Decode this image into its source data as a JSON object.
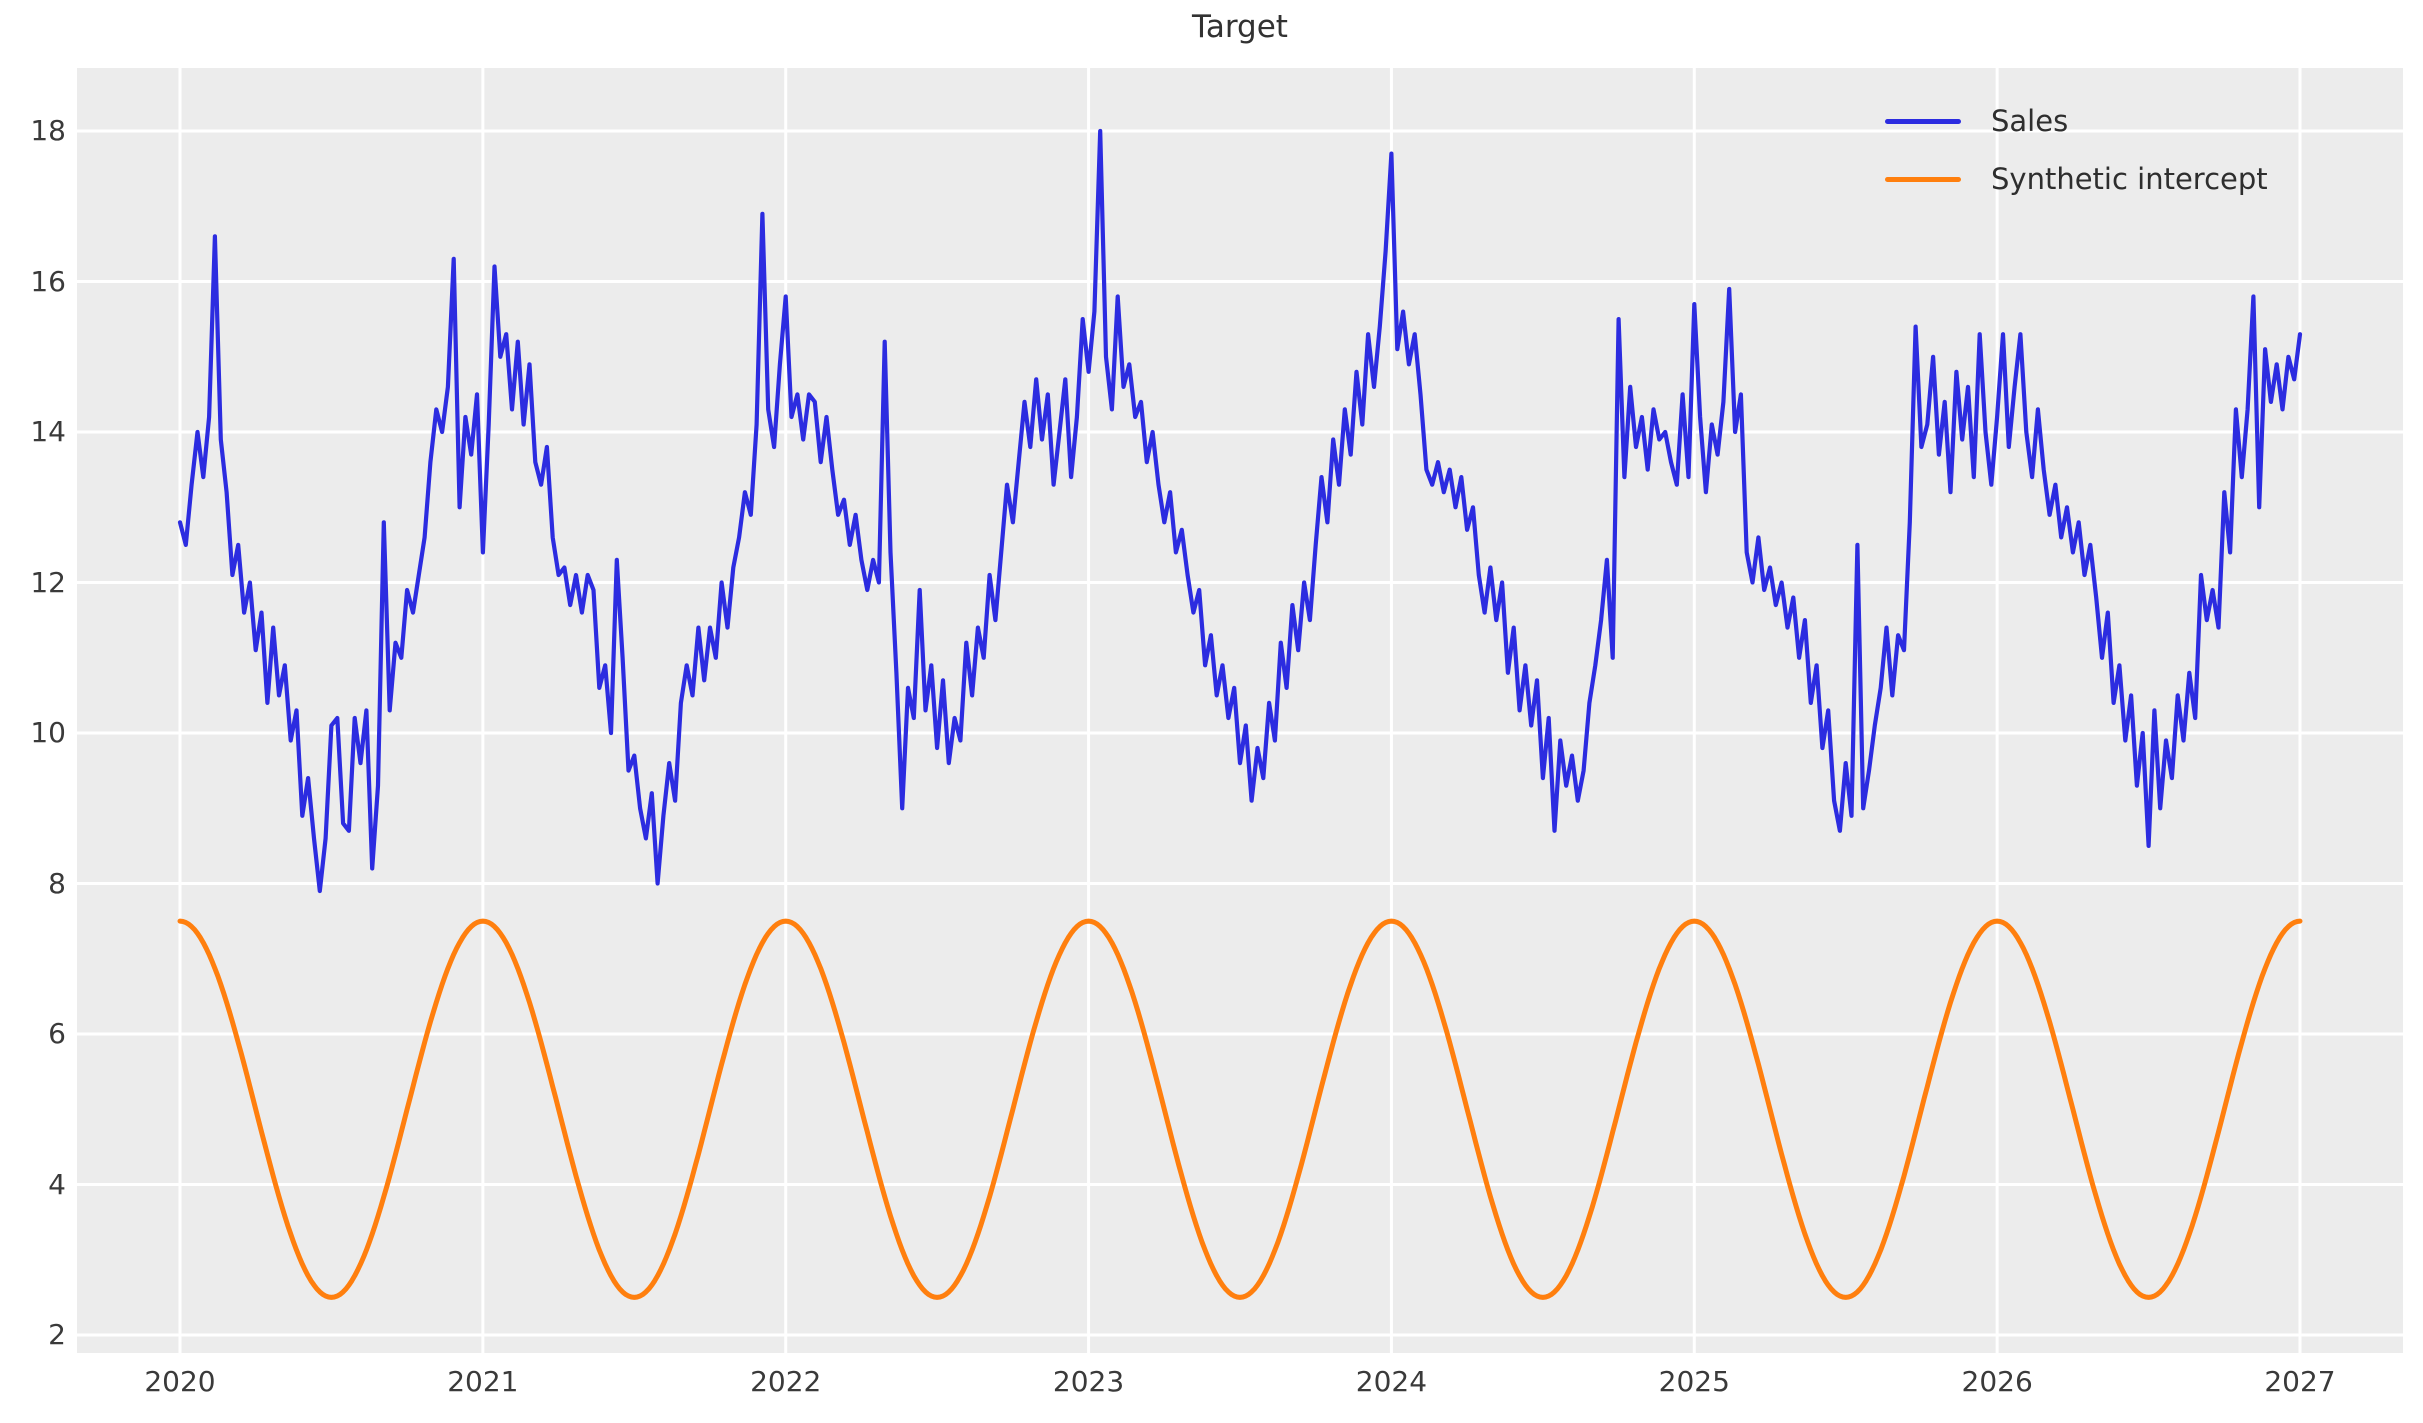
{
  "chart_data": {
    "type": "line",
    "title": "Target",
    "plot_bg": "#ececec",
    "grid": true,
    "grid_color": "#ffffff",
    "text_color": "#3a3a3a",
    "x_axis": {
      "ticks": [
        2020,
        2021,
        2022,
        2023,
        2024,
        2025,
        2026,
        2027
      ],
      "range": [
        2019.66,
        2027.34
      ]
    },
    "y_axis": {
      "ticks": [
        2,
        4,
        6,
        8,
        10,
        12,
        14,
        16,
        18
      ],
      "range": [
        1.73,
        18.78
      ]
    },
    "legend": {
      "position": "upper right",
      "entries": [
        {
          "label": "Sales",
          "color": "#2c2ce0"
        },
        {
          "label": "Synthetic intercept",
          "color": "#ff7f0e"
        }
      ]
    },
    "series": [
      {
        "name": "Sales",
        "color": "#2c2ce0",
        "line_width": 4.2,
        "frequency": "weekly",
        "x_start": 2020,
        "points_per_year": 52,
        "values_by_year": {
          "2020": [
            12.8,
            12.5,
            13.3,
            14.0,
            13.4,
            14.2,
            16.6,
            13.9,
            13.2,
            12.1,
            12.5,
            11.6,
            12.0,
            11.1,
            11.6,
            10.4,
            11.4,
            10.5,
            10.9,
            9.9,
            10.3,
            8.9,
            9.4,
            8.6,
            7.9,
            8.6,
            10.1,
            10.2,
            8.8,
            8.7,
            10.2,
            9.6,
            10.3,
            8.2,
            9.3,
            12.8,
            10.3,
            11.2,
            11.0,
            11.9,
            11.6,
            12.1,
            12.6,
            13.6,
            14.3,
            14.0,
            14.6,
            16.3,
            13.0,
            14.2,
            13.7,
            14.5
          ],
          "2021": [
            12.4,
            14.1,
            16.2,
            15.0,
            15.3,
            14.3,
            15.2,
            14.1,
            14.9,
            13.6,
            13.3,
            13.8,
            12.6,
            12.1,
            12.2,
            11.7,
            12.1,
            11.6,
            12.1,
            11.9,
            10.6,
            10.9,
            10.0,
            12.3,
            11.0,
            9.5,
            9.7,
            9.0,
            8.6,
            9.2,
            8.0,
            8.9,
            9.6,
            9.1,
            10.4,
            10.9,
            10.5,
            11.4,
            10.7,
            11.4,
            11.0,
            12.0,
            11.4,
            12.2,
            12.6,
            13.2,
            12.9,
            14.1,
            16.9,
            14.3,
            13.8,
            14.9
          ],
          "2022": [
            15.8,
            14.2,
            14.5,
            13.9,
            14.5,
            14.4,
            13.6,
            14.2,
            13.5,
            12.9,
            13.1,
            12.5,
            12.9,
            12.3,
            11.9,
            12.3,
            12.0,
            15.2,
            12.4,
            10.8,
            9.0,
            10.6,
            10.2,
            11.9,
            10.3,
            10.9,
            9.8,
            10.7,
            9.6,
            10.2,
            9.9,
            11.2,
            10.5,
            11.4,
            11.0,
            12.1,
            11.5,
            12.4,
            13.3,
            12.8,
            13.6,
            14.4,
            13.8,
            14.7,
            13.9,
            14.5,
            13.3,
            14.0,
            14.7,
            13.4,
            14.2,
            15.5
          ],
          "2023": [
            14.8,
            15.6,
            18.0,
            15.0,
            14.3,
            15.8,
            14.6,
            14.9,
            14.2,
            14.4,
            13.6,
            14.0,
            13.3,
            12.8,
            13.2,
            12.4,
            12.7,
            12.1,
            11.6,
            11.9,
            10.9,
            11.3,
            10.5,
            10.9,
            10.2,
            10.6,
            9.6,
            10.1,
            9.1,
            9.8,
            9.4,
            10.4,
            9.9,
            11.2,
            10.6,
            11.7,
            11.1,
            12.0,
            11.5,
            12.5,
            13.4,
            12.8,
            13.9,
            13.3,
            14.3,
            13.7,
            14.8,
            14.1,
            15.3,
            14.6,
            15.4,
            16.4
          ],
          "2024": [
            17.7,
            15.1,
            15.6,
            14.9,
            15.3,
            14.5,
            13.5,
            13.3,
            13.6,
            13.2,
            13.5,
            13.0,
            13.4,
            12.7,
            13.0,
            12.1,
            11.6,
            12.2,
            11.5,
            12.0,
            10.8,
            11.4,
            10.3,
            10.9,
            10.1,
            10.7,
            9.4,
            10.2,
            8.7,
            9.9,
            9.3,
            9.7,
            9.1,
            9.5,
            10.4,
            10.9,
            11.5,
            12.3,
            11.0,
            15.5,
            13.4,
            14.6,
            13.8,
            14.2,
            13.5,
            14.3,
            13.9,
            14.0,
            13.6,
            13.3,
            14.5,
            13.4
          ],
          "2025": [
            15.7,
            14.2,
            13.2,
            14.1,
            13.7,
            14.4,
            15.9,
            14.0,
            14.5,
            12.4,
            12.0,
            12.6,
            11.9,
            12.2,
            11.7,
            12.0,
            11.4,
            11.8,
            11.0,
            11.5,
            10.4,
            10.9,
            9.8,
            10.3,
            9.1,
            8.7,
            9.6,
            8.9,
            12.5,
            9.0,
            9.5,
            10.1,
            10.6,
            11.4,
            10.5,
            11.3,
            11.1,
            12.8,
            15.4,
            13.8,
            14.1,
            15.0,
            13.7,
            14.4,
            13.2,
            14.8,
            13.9,
            14.6,
            13.4,
            15.3,
            14.0,
            13.3
          ],
          "2026": [
            14.2,
            15.3,
            13.8,
            14.6,
            15.3,
            14.0,
            13.4,
            14.3,
            13.5,
            12.9,
            13.3,
            12.6,
            13.0,
            12.4,
            12.8,
            12.1,
            12.5,
            11.8,
            11.0,
            11.6,
            10.4,
            10.9,
            9.9,
            10.5,
            9.3,
            10.0,
            8.5,
            10.3,
            9.0,
            9.9,
            9.4,
            10.5,
            9.9,
            10.8,
            10.2,
            12.1,
            11.5,
            11.9,
            11.4,
            13.2,
            12.4,
            14.3,
            13.4,
            14.3,
            15.8,
            13.0,
            15.1,
            14.4,
            14.9,
            14.3,
            15.0,
            14.7
          ]
        },
        "final_value_at_2027": 15.3
      },
      {
        "name": "Synthetic intercept",
        "color": "#ff7f0e",
        "line_width": 5,
        "model": "sinusoid",
        "base": 5.0,
        "amplitude": 2.5,
        "period_years": 1,
        "phase": "maximum at each year start",
        "min": 2.5,
        "max": 7.5,
        "x_start": 2020,
        "x_end": 2027
      }
    ]
  }
}
